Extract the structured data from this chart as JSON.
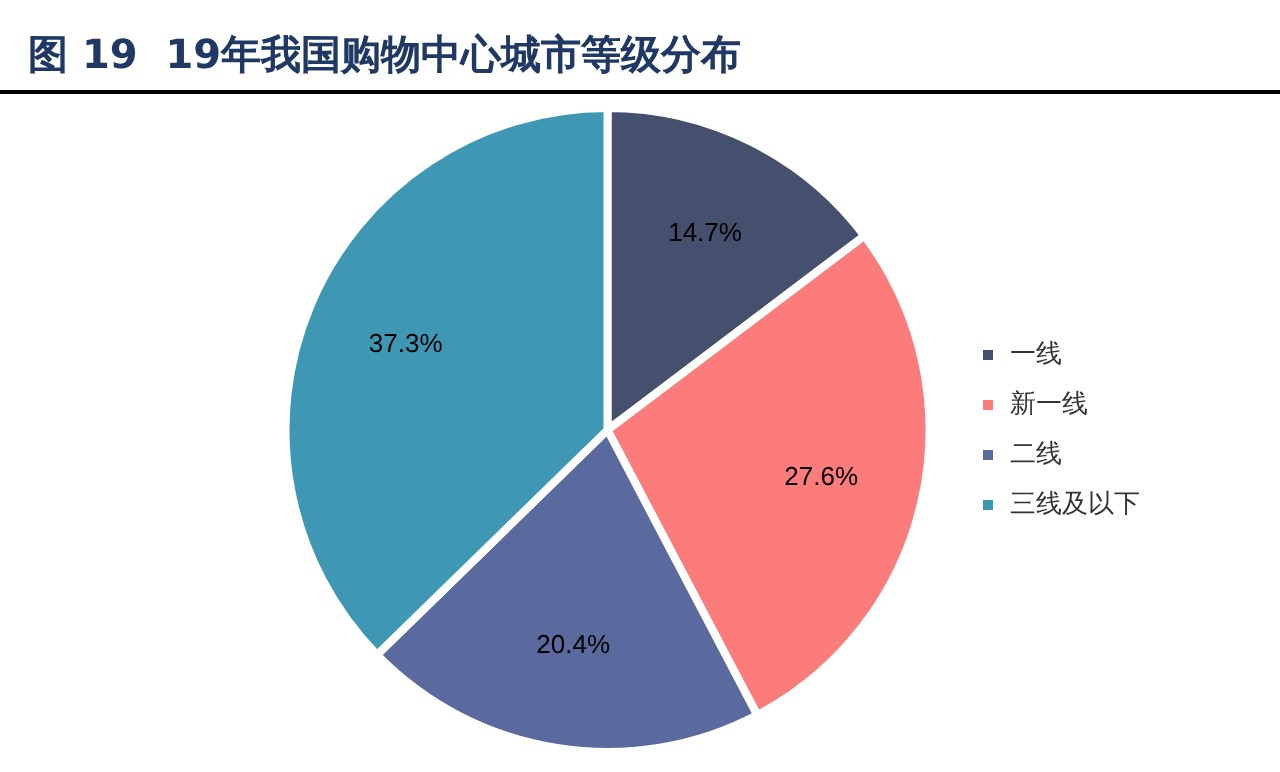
{
  "chart_data": {
    "type": "pie",
    "title": "图 19  19年我国购物中心城市等级分布",
    "categories": [
      "一线",
      "新一线",
      "二线",
      "三线及以下"
    ],
    "values": [
      14.7,
      27.6,
      20.4,
      37.3
    ],
    "value_labels": [
      "14.7%",
      "27.6%",
      "20.4%",
      "37.3%"
    ],
    "colors": [
      "#44506e",
      "#fc7b7b",
      "#5b6a9e",
      "#3e98b4"
    ],
    "legend": "right"
  }
}
